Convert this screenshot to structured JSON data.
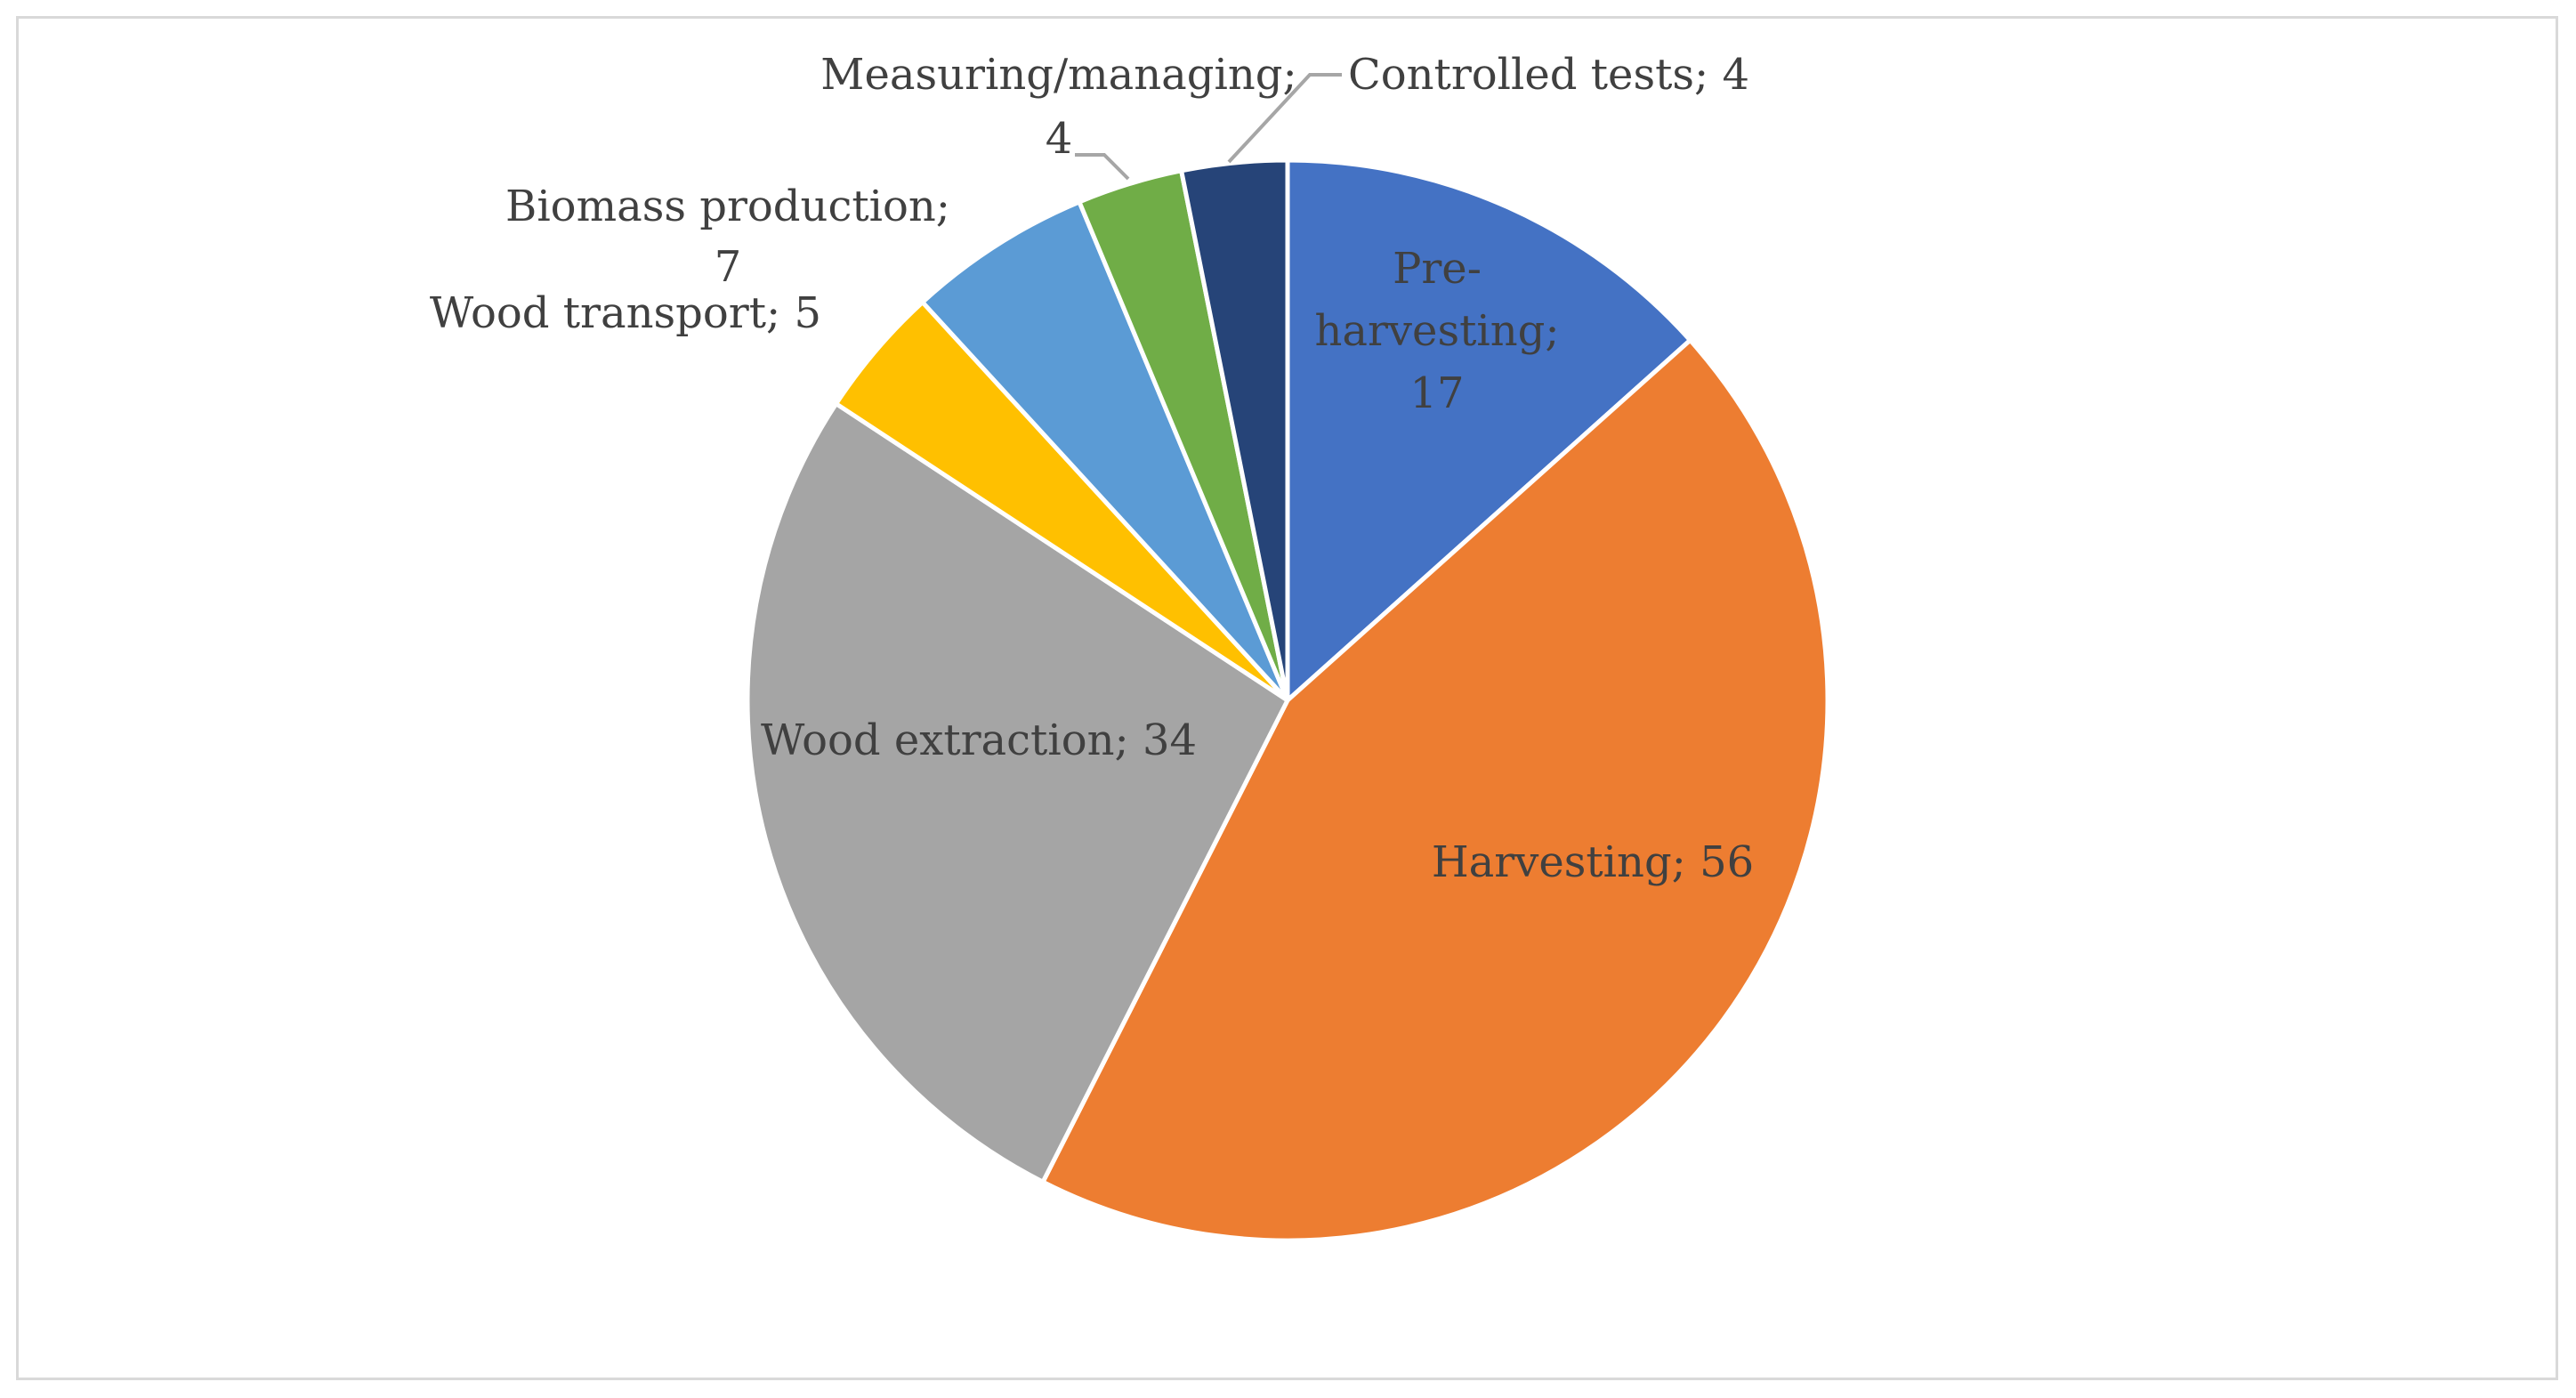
{
  "chart_data": {
    "type": "pie",
    "slices": [
      {
        "label": "Pre-harvesting",
        "value": 17,
        "color": "#4472c4"
      },
      {
        "label": "Harvesting",
        "value": 56,
        "color": "#ed7d31"
      },
      {
        "label": "Wood extraction",
        "value": 34,
        "color": "#a5a5a5"
      },
      {
        "label": "Wood transport",
        "value": 5,
        "color": "#ffc000"
      },
      {
        "label": "Biomass production",
        "value": 7,
        "color": "#5b9bd5"
      },
      {
        "label": "Measuring/managing",
        "value": 4,
        "color": "#70ad47"
      },
      {
        "label": "Controlled tests",
        "value": 4,
        "color": "#264478"
      }
    ],
    "data_labels": [
      {
        "lines": [
          "Pre-",
          "harvesting;",
          "17"
        ]
      },
      {
        "lines": [
          "Harvesting; 56"
        ]
      },
      {
        "lines": [
          "Wood extraction; 34"
        ]
      },
      {
        "lines": [
          "Wood transport; 5"
        ]
      },
      {
        "lines": [
          "Biomass production;",
          "7"
        ]
      },
      {
        "lines": [
          "Measuring/managing;",
          "4"
        ]
      },
      {
        "lines": [
          "Controlled tests; 4"
        ]
      }
    ],
    "start_angle": "12 o'clock",
    "direction": "clockwise",
    "legend": "none",
    "slice_border_color": "#ffffff",
    "label_color": "#404040",
    "leader_line_color": "#a6a6a6"
  }
}
